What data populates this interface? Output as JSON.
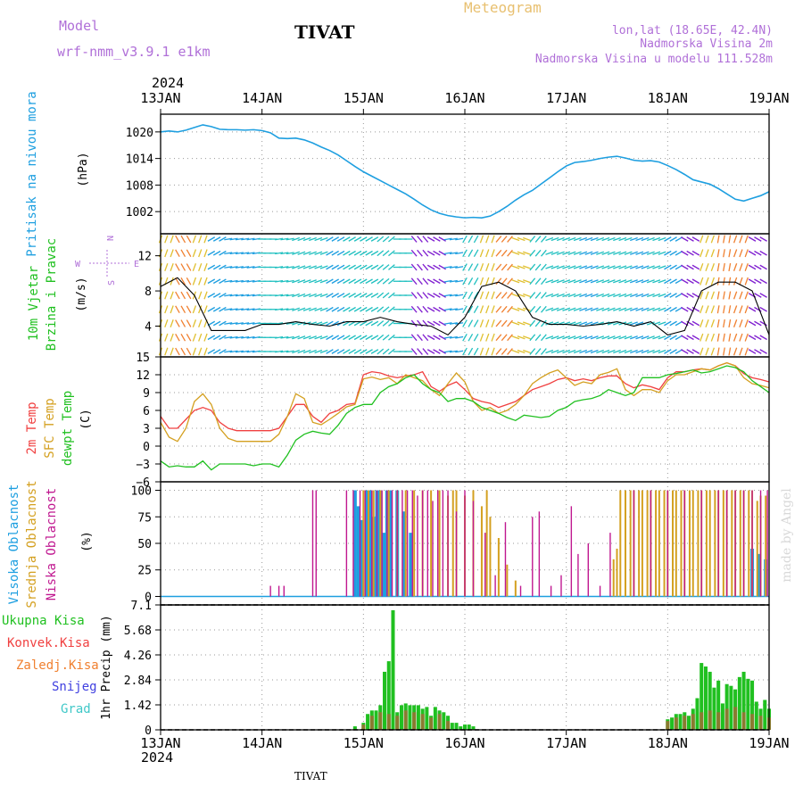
{
  "header": {
    "model_label": "Model",
    "model_name": "wrf-nmm_v3.9.1 e1km",
    "station": "TIVAT",
    "meteogram": "Meteogram",
    "lonlat": "lon,lat (18.65E, 42.4N)",
    "altitude": "Nadmorska Visina 2m",
    "model_altitude": "Nadmorska Visina u modelu 111.528m",
    "credit": "made by Angel",
    "footer_station": "TIVAT"
  },
  "colors": {
    "pressure": "#1e9fe0",
    "t2m": "#f04040",
    "sfc": "#d4a020",
    "dewpt": "#20c020",
    "high_cloud": "#1e9fe0",
    "mid_cloud": "#d4a020",
    "low_cloud": "#c01890",
    "precip_total": "#20c020",
    "precip_conv": "#f04040",
    "wind_speed_line": "#000000",
    "wind_label": "#20c020"
  },
  "chart_data": [
    {
      "type": "line",
      "panel": "pressure",
      "title": "Pritisak na nivou mora",
      "ylabel": "(hPa)",
      "x_labels": [
        "13JAN",
        "14JAN",
        "15JAN",
        "16JAN",
        "17JAN",
        "18JAN",
        "19JAN"
      ],
      "year": "2024",
      "ylim": [
        997,
        1024
      ],
      "yticks": [
        1002,
        1008,
        1014,
        1020
      ],
      "x": [
        0,
        0.5,
        1,
        1.5,
        2,
        2.5,
        3,
        3.5,
        4,
        4.5,
        5,
        5.5,
        6,
        6.5,
        7,
        7.5,
        8,
        8.5,
        9,
        9.5,
        10,
        10.5,
        11,
        11.5,
        12,
        12.5,
        13,
        13.5,
        14,
        14.5,
        15,
        15.5,
        16,
        16.5,
        17,
        17.5,
        18,
        18.5,
        19,
        19.5,
        20,
        20.5,
        21,
        21.5,
        22,
        22.5,
        23,
        23.5,
        24,
        24.5,
        25,
        25.5,
        26,
        26.5,
        27,
        27.5,
        28,
        28.5,
        29,
        29.5,
        30,
        30.5,
        31,
        31.5,
        32,
        32.5,
        33,
        33.5,
        34,
        34.5,
        35,
        35.5,
        36
      ],
      "series": [
        {
          "values": [
            1020,
            1020.2,
            1020,
            1020.4,
            1021,
            1021.6,
            1021.2,
            1020.6,
            1020.5,
            1020.5,
            1020.4,
            1020.5,
            1020.3,
            1019.8,
            1018.6,
            1018.5,
            1018.6,
            1018.2,
            1017.5,
            1016.6,
            1015.8,
            1014.8,
            1013.5,
            1012.2,
            1011,
            1010,
            1009,
            1008,
            1007,
            1006,
            1004.8,
            1003.5,
            1002.4,
            1001.6,
            1001.1,
            1000.8,
            1000.6,
            1000.7,
            1000.6,
            1001,
            1002,
            1003.2,
            1004.6,
            1005.8,
            1006.8,
            1008.2,
            1009.6,
            1011,
            1012.3,
            1013.1,
            1013.3,
            1013.6,
            1014,
            1014.3,
            1014.5,
            1014.1,
            1013.6,
            1013.4,
            1013.5,
            1013.2,
            1012.4,
            1011.5,
            1010.4,
            1009.2,
            1008.7,
            1008.2,
            1007.2,
            1006,
            1004.8,
            1004.4,
            1005,
            1005.6,
            1006.5
          ]
        }
      ]
    },
    {
      "type": "line",
      "panel": "wind",
      "title": "10m Vjetar",
      "subtitle": "Brzina i Pravac",
      "ylabel": "(m/s)",
      "compass": [
        "N",
        "E",
        "S",
        "W"
      ],
      "ylim": [
        0.5,
        14.5
      ],
      "yticks": [
        4,
        8,
        12
      ],
      "x": [
        0,
        1,
        2,
        3,
        4,
        5,
        6,
        7,
        8,
        9,
        10,
        11,
        12,
        13,
        14,
        15,
        16,
        17,
        18,
        19,
        20,
        21,
        22,
        23,
        24,
        25,
        26,
        27,
        28,
        29,
        30,
        31,
        32,
        33,
        34,
        35,
        36
      ],
      "series": [
        {
          "name": "speed",
          "values": [
            8.5,
            9.5,
            7.5,
            3.5,
            3.5,
            3.5,
            4.2,
            4.2,
            4.5,
            4.2,
            4,
            4.5,
            4.5,
            5,
            4.5,
            4.2,
            4,
            3,
            5,
            8.5,
            9,
            8,
            5,
            4.2,
            4.2,
            4,
            4.2,
            4.5,
            4,
            4.5,
            3,
            3.5,
            8,
            9,
            9,
            8,
            3
          ]
        }
      ],
      "directions": [
        200,
        150,
        200,
        240,
        260,
        260,
        270,
        260,
        250,
        250,
        240,
        240,
        240,
        230,
        270,
        320,
        300,
        80,
        210,
        200,
        40,
        110,
        220,
        250,
        250,
        250,
        250,
        250,
        250,
        250,
        240,
        300,
        200,
        190,
        200,
        300,
        230
      ]
    },
    {
      "type": "line",
      "panel": "temperature",
      "labels": [
        "2m Temp",
        "SFC Temp",
        "dewpt Temp"
      ],
      "ylabel": "(C)",
      "ylim": [
        -6,
        15
      ],
      "yticks": [
        -6,
        -3,
        0,
        3,
        6,
        9,
        12,
        15
      ],
      "x": [
        0,
        0.5,
        1,
        1.5,
        2,
        2.5,
        3,
        3.5,
        4,
        4.5,
        5,
        5.5,
        6,
        6.5,
        7,
        7.5,
        8,
        8.5,
        9,
        9.5,
        10,
        10.5,
        11,
        11.5,
        12,
        12.5,
        13,
        13.5,
        14,
        14.5,
        15,
        15.5,
        16,
        16.5,
        17,
        17.5,
        18,
        18.5,
        19,
        19.5,
        20,
        20.5,
        21,
        21.5,
        22,
        22.5,
        23,
        23.5,
        24,
        24.5,
        25,
        25.5,
        26,
        26.5,
        27,
        27.5,
        28,
        28.5,
        29,
        29.5,
        30,
        30.5,
        31,
        31.5,
        32,
        32.5,
        33,
        33.5,
        34,
        34.5,
        35,
        35.5,
        36
      ],
      "series": [
        {
          "name": "2m Temp",
          "values": [
            5,
            3,
            3,
            4.5,
            6,
            6.5,
            6,
            4,
            3,
            2.6,
            2.6,
            2.6,
            2.6,
            2.6,
            3,
            5,
            7,
            7,
            5,
            4,
            5.5,
            6,
            7,
            7.2,
            12,
            12.5,
            12.3,
            11.8,
            11.5,
            11.8,
            12,
            12.5,
            10,
            9.2,
            10.2,
            10.8,
            9.5,
            8,
            7.5,
            7.2,
            6.5,
            7,
            7.5,
            8.5,
            9.5,
            10,
            10.5,
            11.2,
            11.5,
            11,
            11.3,
            11,
            11.5,
            11.8,
            11.8,
            10.5,
            9.8,
            10.3,
            10,
            9.5,
            11.5,
            12.5,
            12.5,
            12.8,
            13,
            12.8,
            13.5,
            14,
            13.5,
            12.2,
            11.5,
            11.2,
            10.8
          ]
        },
        {
          "name": "SFC Temp",
          "values": [
            4,
            1.5,
            0.8,
            3,
            7.5,
            8.8,
            7,
            3,
            1.3,
            0.8,
            0.8,
            0.8,
            0.8,
            0.8,
            2,
            5,
            8.8,
            8,
            4,
            3.6,
            4.5,
            5.5,
            6.6,
            7,
            11.3,
            11.6,
            11.2,
            11.5,
            10.5,
            12,
            11.5,
            11,
            9.5,
            8.5,
            10.5,
            12.3,
            10.8,
            7.5,
            6,
            6.5,
            5.5,
            6,
            7,
            8.5,
            10.5,
            11.5,
            12.3,
            12.8,
            11.5,
            10.2,
            10.8,
            10.5,
            12,
            12.4,
            13,
            9.5,
            8.5,
            9.5,
            9.5,
            9,
            11,
            12,
            12,
            12.5,
            13,
            12.8,
            13.5,
            14,
            13.5,
            11.5,
            10.5,
            10.2,
            9.8
          ]
        },
        {
          "name": "dewpt Temp",
          "values": [
            -2.5,
            -3.5,
            -3.3,
            -3.5,
            -3.5,
            -2.5,
            -4,
            -3,
            -3,
            -3,
            -3,
            -3.3,
            -3,
            -3,
            -3.5,
            -1.5,
            1,
            2,
            2.5,
            2.2,
            2,
            3.5,
            5.5,
            6.5,
            7,
            7,
            9,
            10,
            10.5,
            11.5,
            12,
            10.5,
            9.5,
            9,
            7.5,
            8,
            8,
            7.5,
            6.5,
            6,
            5.5,
            4.8,
            4.3,
            5.2,
            5,
            4.8,
            5,
            6,
            6.5,
            7.5,
            7.8,
            8,
            8.5,
            9.5,
            9,
            8.5,
            9,
            11.5,
            11.5,
            11.5,
            12,
            12.2,
            12.5,
            12.8,
            12.3,
            12.5,
            13,
            13.5,
            13.2,
            12.5,
            11,
            10,
            9
          ]
        }
      ]
    },
    {
      "type": "bar",
      "panel": "cloud",
      "labels": [
        "Visoka Oblacnost",
        "Srednja Oblacnost",
        "Niska Oblacnost"
      ],
      "ylabel": "(%)",
      "ylim": [
        0,
        100
      ],
      "yticks": [
        0,
        25,
        50,
        75,
        100
      ],
      "series": [
        {
          "name": "Visoka Oblacnost",
          "x": [
            11.5,
            11.7,
            11.9,
            12.2,
            12.4,
            12.6,
            12.8,
            13.0,
            13.2,
            13.4,
            13.6,
            14.0,
            14.4,
            14.8,
            35.0,
            35.4,
            35.8
          ],
          "values": [
            100,
            85,
            72,
            100,
            100,
            75,
            100,
            100,
            60,
            100,
            100,
            100,
            80,
            60,
            45,
            40,
            35
          ]
        },
        {
          "name": "Srednja Oblacnost",
          "x": [
            12.0,
            12.3,
            12.6,
            13.0,
            13.5,
            14.0,
            14.5,
            15.0,
            15.5,
            16.0,
            16.5,
            17.0,
            17.3,
            17.5,
            18.0,
            18.5,
            19.0,
            19.3,
            19.5,
            20.0,
            20.5,
            21.0,
            26.8,
            27.0,
            27.2,
            27.5,
            27.8,
            28.0,
            28.3,
            28.5,
            28.8,
            29.0,
            29.3,
            29.5,
            29.8,
            30.0,
            30.3,
            30.5,
            30.8,
            31.0,
            31.3,
            31.5,
            31.8,
            32.0,
            32.3,
            32.5,
            32.8,
            33.0,
            33.3,
            33.5,
            33.8,
            34.0,
            34.3,
            34.5,
            34.8,
            35.0,
            35.3,
            35.5,
            35.8
          ],
          "values": [
            100,
            100,
            100,
            100,
            100,
            100,
            100,
            100,
            100,
            100,
            100,
            95,
            100,
            100,
            95,
            100,
            85,
            100,
            75,
            55,
            30,
            15,
            35,
            45,
            100,
            100,
            100,
            100,
            100,
            100,
            100,
            100,
            100,
            100,
            100,
            100,
            100,
            100,
            100,
            100,
            100,
            100,
            100,
            100,
            100,
            100,
            100,
            100,
            100,
            100,
            100,
            100,
            100,
            100,
            100,
            100,
            90,
            95,
            95
          ]
        },
        {
          "name": "Niska Oblacnost",
          "x": [
            6.5,
            7.0,
            7.3,
            9.0,
            9.2,
            11.0,
            11.4,
            11.8,
            12.1,
            12.5,
            12.8,
            13.1,
            13.4,
            13.7,
            14.0,
            14.3,
            14.6,
            14.9,
            15.2,
            15.5,
            15.8,
            16.1,
            16.4,
            16.7,
            17.0,
            17.5,
            18.0,
            18.5,
            19.2,
            19.8,
            20.4,
            21.3,
            22.0,
            22.4,
            23.1,
            23.7,
            24.3,
            24.7,
            25.3,
            26.0,
            26.6,
            28.0,
            29.0,
            30.0,
            31.0,
            32.0,
            33.0,
            33.5,
            34.0,
            34.5,
            35.0,
            35.5,
            35.9
          ],
          "values": [
            10,
            10,
            10,
            100,
            100,
            100,
            100,
            100,
            100,
            100,
            100,
            100,
            100,
            100,
            100,
            100,
            100,
            100,
            95,
            100,
            100,
            90,
            100,
            100,
            100,
            80,
            100,
            90,
            60,
            20,
            70,
            10,
            75,
            80,
            10,
            20,
            85,
            40,
            50,
            10,
            60,
            100,
            100,
            100,
            100,
            100,
            100,
            100,
            100,
            100,
            100,
            100,
            100
          ]
        }
      ]
    },
    {
      "type": "bar",
      "panel": "precip",
      "labels": [
        "Ukupna Kisa",
        "Konvek.Kisa",
        "Zaledj.Kisa",
        "Snijeg",
        "Grad"
      ],
      "ylabel": "1hr Precip (mm)",
      "ylim": [
        0,
        7.1
      ],
      "yticks": [
        0,
        1.42,
        2.84,
        4.26,
        5.68,
        7.1
      ],
      "x_labels": [
        "13JAN",
        "14JAN",
        "15JAN",
        "16JAN",
        "17JAN",
        "18JAN",
        "19JAN"
      ],
      "year": "2024",
      "series": [
        {
          "name": "Ukupna Kisa",
          "x": [
            11.5,
            12.0,
            12.25,
            12.5,
            12.75,
            13.0,
            13.25,
            13.5,
            13.75,
            14.0,
            14.25,
            14.5,
            14.75,
            15.0,
            15.25,
            15.5,
            15.75,
            16.0,
            16.25,
            16.5,
            16.75,
            17.0,
            17.25,
            17.5,
            17.75,
            18.0,
            18.25,
            18.5,
            30.0,
            30.25,
            30.5,
            30.75,
            31.0,
            31.25,
            31.5,
            31.75,
            32.0,
            32.25,
            32.5,
            32.75,
            33.0,
            33.25,
            33.5,
            33.75,
            34.0,
            34.25,
            34.5,
            34.75,
            35.0,
            35.25,
            35.5,
            35.75,
            36.0
          ],
          "values": [
            0.2,
            0.4,
            0.9,
            1.1,
            1.1,
            1.4,
            3.3,
            3.9,
            6.8,
            1.0,
            1.4,
            1.5,
            1.4,
            1.4,
            1.4,
            1.2,
            1.3,
            0.8,
            1.3,
            1.1,
            1.0,
            0.8,
            0.4,
            0.4,
            0.2,
            0.3,
            0.3,
            0.2,
            0.6,
            0.7,
            0.9,
            0.9,
            1.0,
            0.8,
            1.2,
            1.8,
            3.8,
            3.6,
            3.3,
            2.4,
            2.8,
            1.5,
            2.6,
            2.5,
            2.3,
            3.0,
            3.3,
            2.9,
            2.8,
            1.6,
            1.2,
            1.7,
            1.2
          ]
        },
        {
          "name": "Konvek.Kisa",
          "x": [
            12.0,
            12.5,
            13.0,
            13.5,
            14.0,
            14.5,
            15.0,
            15.5,
            16.0,
            16.5,
            17.0,
            30.0,
            30.5,
            31.0,
            31.5,
            32.0,
            32.5,
            33.0,
            33.5,
            34.0,
            34.5,
            35.0,
            35.5,
            36.0
          ],
          "values": [
            0.3,
            0.8,
            1.0,
            0.9,
            0.8,
            1.1,
            1.0,
            0.9,
            0.7,
            0.9,
            0.5,
            0.5,
            0.7,
            0.8,
            0.9,
            1.0,
            1.1,
            1.0,
            1.2,
            1.3,
            1.0,
            0.9,
            0.8,
            0.7
          ]
        }
      ]
    }
  ]
}
